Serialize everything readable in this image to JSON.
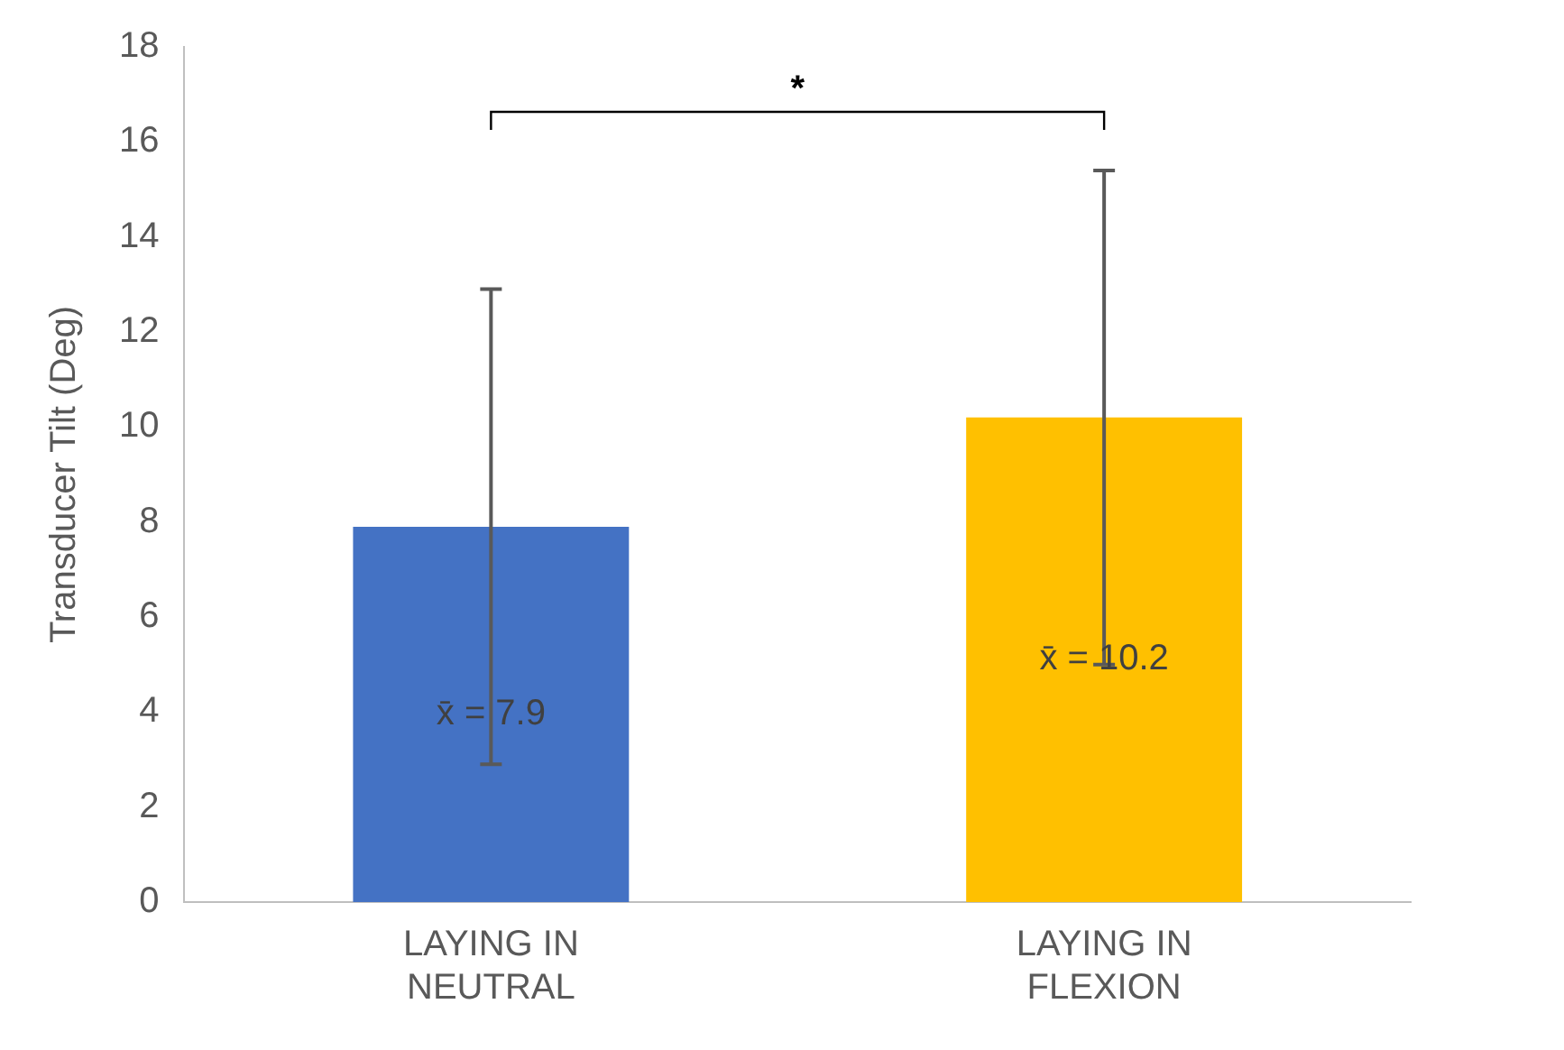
{
  "chart_data": {
    "type": "bar",
    "ylabel": "Transducer Tilt (Deg)",
    "categories": [
      "LAYING IN NEUTRAL",
      "LAYING IN FLEXION"
    ],
    "values": [
      7.9,
      10.2
    ],
    "colors": [
      "#4472c4",
      "#ffc000"
    ],
    "errors": [
      5.0,
      5.2
    ],
    "value_labels": [
      "x̄ = 7.9",
      "x̄ = 10.2"
    ],
    "ylim": [
      0,
      18
    ],
    "yticks": [
      0,
      2,
      4,
      6,
      8,
      10,
      12,
      14,
      16,
      18
    ],
    "grid": false,
    "legend": false,
    "annotations": [
      "*"
    ]
  }
}
